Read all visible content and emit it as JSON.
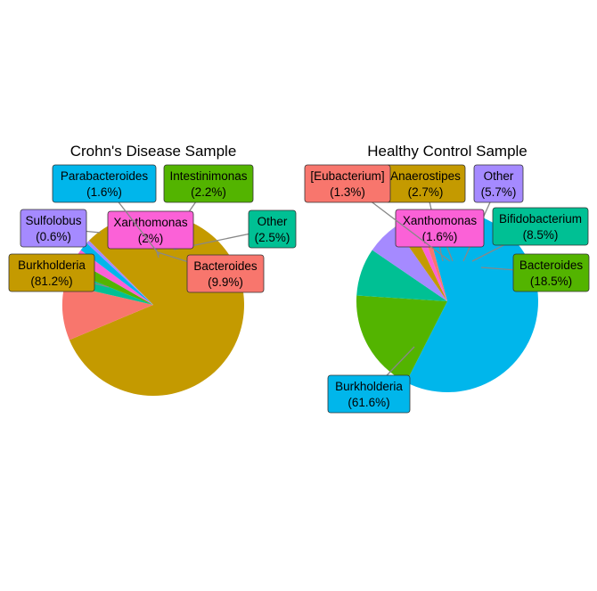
{
  "chart_data": [
    {
      "type": "pie",
      "title": "Crohn's Disease Sample",
      "slices": [
        {
          "label": "Burkholderia",
          "pct_text": "(81.2%)",
          "value": 81.2,
          "color": "#C49A00"
        },
        {
          "label": "Bacteroides",
          "pct_text": "(9.9%)",
          "value": 9.9,
          "color": "#F8766D"
        },
        {
          "label": "Other",
          "pct_text": "(2.5%)",
          "value": 2.5,
          "color": "#00C094"
        },
        {
          "label": "Intestinimonas",
          "pct_text": "(2.2%)",
          "value": 2.2,
          "color": "#53B400"
        },
        {
          "label": "Xanthomonas",
          "pct_text": "(2%)",
          "value": 2.0,
          "color": "#FB61D7"
        },
        {
          "label": "Parabacteroides",
          "pct_text": "(1.6%)",
          "value": 1.6,
          "color": "#00B6EB"
        },
        {
          "label": "Sulfolobus",
          "pct_text": "(0.6%)",
          "value": 0.6,
          "color": "#A58AFF"
        }
      ]
    },
    {
      "type": "pie",
      "title": "Healthy Control Sample",
      "slices": [
        {
          "label": "Burkholderia",
          "pct_text": "(61.6%)",
          "value": 61.6,
          "color": "#00B6EB"
        },
        {
          "label": "Bacteroides",
          "pct_text": "(18.5%)",
          "value": 18.5,
          "color": "#53B400"
        },
        {
          "label": "Bifidobacterium",
          "pct_text": "(8.5%)",
          "value": 8.5,
          "color": "#00C094"
        },
        {
          "label": "Other",
          "pct_text": "(5.7%)",
          "value": 5.7,
          "color": "#A58AFF"
        },
        {
          "label": "Anaerostipes",
          "pct_text": "(2.7%)",
          "value": 2.7,
          "color": "#C49A00"
        },
        {
          "label": "Xanthomonas",
          "pct_text": "(1.6%)",
          "value": 1.6,
          "color": "#FB61D7"
        },
        {
          "label": "[Eubacterium]",
          "pct_text": "(1.3%)",
          "value": 1.3,
          "color": "#F8766D"
        }
      ]
    }
  ]
}
